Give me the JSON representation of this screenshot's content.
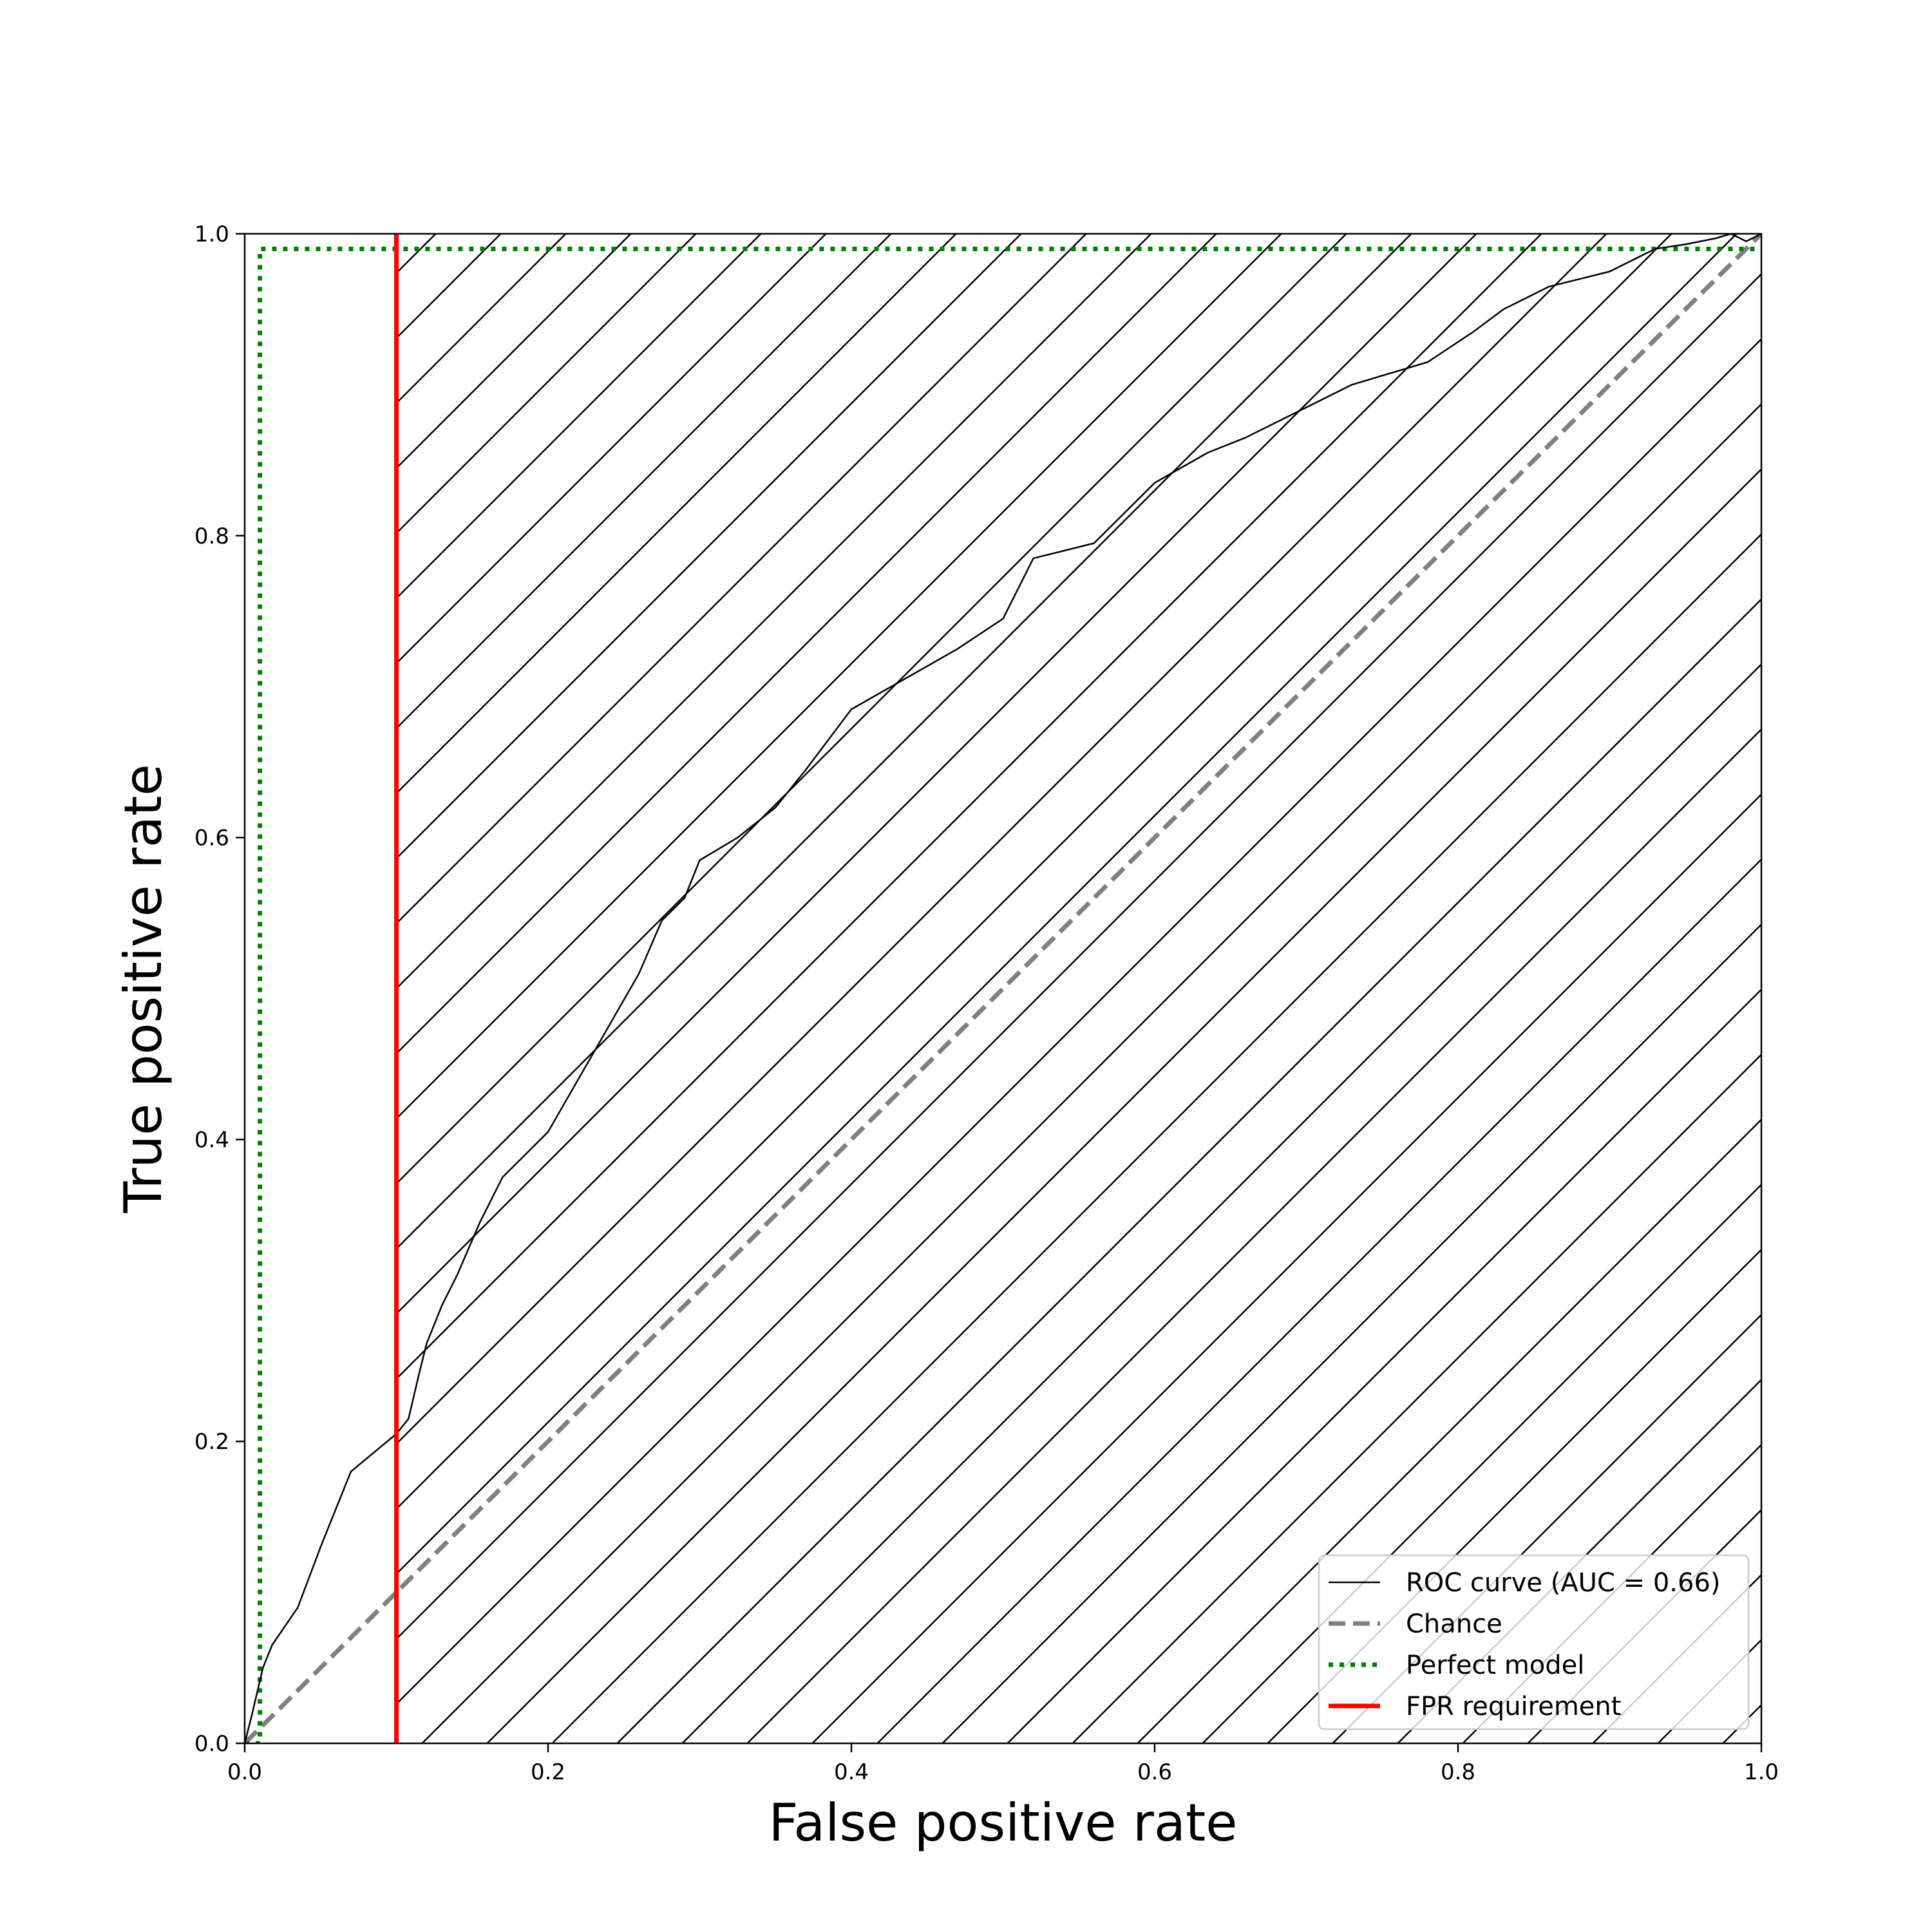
{
  "chart_data": {
    "type": "line",
    "title": "",
    "xlabel": "False positive rate",
    "ylabel": "True positive rate",
    "xlim": [
      0.0,
      1.0
    ],
    "ylim": [
      0.0,
      1.0
    ],
    "x_ticks": [
      0.0,
      0.2,
      0.4,
      0.6,
      0.8,
      1.0
    ],
    "y_ticks": [
      0.0,
      0.2,
      0.4,
      0.6,
      0.8,
      1.0
    ],
    "x_tick_labels": [
      "0.0",
      "0.2",
      "0.4",
      "0.6",
      "0.8",
      "1.0"
    ],
    "y_tick_labels": [
      "0.0",
      "0.2",
      "0.4",
      "0.6",
      "0.8",
      "1.0"
    ],
    "grid": false,
    "legend_position": "lower-right",
    "hatched_region": {
      "x_from": 0.1,
      "x_to": 1.0,
      "y_from": 0.0,
      "y_to": 1.0,
      "pattern": "diagonal lines"
    },
    "series": [
      {
        "name": "ROC curve (AUC = 0.66)",
        "style": "solid",
        "color": "#000000",
        "x": [
          0.0,
          0.005,
          0.012,
          0.018,
          0.035,
          0.05,
          0.07,
          0.1,
          0.108,
          0.115,
          0.12,
          0.13,
          0.14,
          0.155,
          0.17,
          0.185,
          0.2,
          0.22,
          0.24,
          0.26,
          0.275,
          0.29,
          0.3,
          0.325,
          0.35,
          0.37,
          0.4,
          0.435,
          0.47,
          0.5,
          0.52,
          0.56,
          0.6,
          0.635,
          0.66,
          0.69,
          0.73,
          0.78,
          0.81,
          0.83,
          0.86,
          0.9,
          0.93,
          0.95,
          0.97,
          0.98,
          0.99,
          1.0
        ],
        "y": [
          0.0,
          0.02,
          0.05,
          0.065,
          0.09,
          0.13,
          0.18,
          0.205,
          0.215,
          0.245,
          0.265,
          0.29,
          0.31,
          0.345,
          0.375,
          0.39,
          0.405,
          0.44,
          0.475,
          0.51,
          0.545,
          0.56,
          0.585,
          0.6,
          0.62,
          0.645,
          0.685,
          0.705,
          0.725,
          0.745,
          0.785,
          0.795,
          0.835,
          0.855,
          0.865,
          0.88,
          0.9,
          0.915,
          0.935,
          0.95,
          0.965,
          0.975,
          0.99,
          0.993,
          0.997,
          1.0,
          0.995,
          1.0
        ]
      },
      {
        "name": "Chance",
        "style": "dashed",
        "color": "#808080",
        "x": [
          0.0,
          1.0
        ],
        "y": [
          0.0,
          1.0
        ]
      },
      {
        "name": "Perfect model",
        "style": "dotted",
        "color": "#008000",
        "x": [
          0.0,
          0.01,
          0.01,
          1.0
        ],
        "y": [
          0.0,
          0.0,
          0.99,
          0.99
        ]
      },
      {
        "name": "FPR requirement",
        "style": "solid",
        "color": "#ff0000",
        "x": [
          0.1,
          0.1
        ],
        "y": [
          0.0,
          1.0
        ]
      }
    ]
  }
}
